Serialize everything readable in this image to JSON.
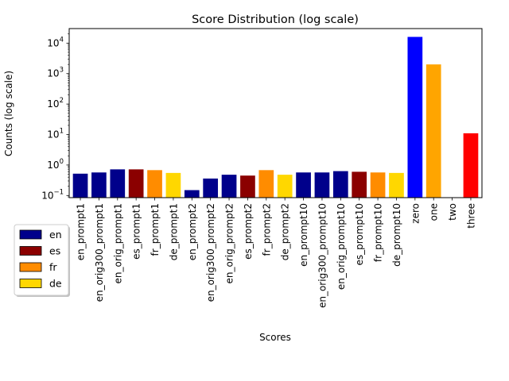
{
  "chart_data": {
    "type": "bar",
    "title": "Score Distribution (log scale)",
    "xlabel": "Scores",
    "ylabel": "Counts (log scale)",
    "yscale": "log",
    "ylim": [
      0.085,
      30000
    ],
    "yticks": [
      {
        "value": 0.1,
        "base": "10",
        "exp": "−1"
      },
      {
        "value": 1,
        "base": "10",
        "exp": "0"
      },
      {
        "value": 10,
        "base": "10",
        "exp": "1"
      },
      {
        "value": 100,
        "base": "10",
        "exp": "2"
      },
      {
        "value": 1000,
        "base": "10",
        "exp": "3"
      },
      {
        "value": 10000,
        "base": "10",
        "exp": "4"
      }
    ],
    "grid": false,
    "legend_position": "lower-left outside",
    "categories": [
      "en_prompt1",
      "en_orig300_prompt1",
      "en_orig_prompt1",
      "es_prompt1",
      "fr_prompt1",
      "de_prompt1",
      "en_prompt2",
      "en_orig300_prompt2",
      "en_orig_prompt2",
      "es_prompt2",
      "fr_prompt2",
      "de_prompt2",
      "en_prompt10",
      "en_orig300_prompt10",
      "en_orig_prompt10",
      "es_prompt10",
      "fr_prompt10",
      "de_prompt10",
      "zero",
      "one",
      "two",
      "three"
    ],
    "values": [
      0.52,
      0.57,
      0.72,
      0.72,
      0.68,
      0.55,
      0.15,
      0.36,
      0.48,
      0.45,
      0.68,
      0.48,
      0.57,
      0.57,
      0.63,
      0.6,
      0.57,
      0.55,
      16000,
      2000,
      null,
      11
    ],
    "colors": [
      "#00008b",
      "#00008b",
      "#00008b",
      "#8b0000",
      "#ff8c00",
      "#ffd700",
      "#00008b",
      "#00008b",
      "#00008b",
      "#8b0000",
      "#ff8c00",
      "#ffd700",
      "#00008b",
      "#00008b",
      "#00008b",
      "#8b0000",
      "#ff8c00",
      "#ffd700",
      "#0000ff",
      "#ffa500",
      "#008000",
      "#ff0000"
    ],
    "legend": [
      {
        "label": "en",
        "color": "#00008b"
      },
      {
        "label": "es",
        "color": "#8b0000"
      },
      {
        "label": "fr",
        "color": "#ff8c00"
      },
      {
        "label": "de",
        "color": "#ffd700"
      }
    ]
  }
}
